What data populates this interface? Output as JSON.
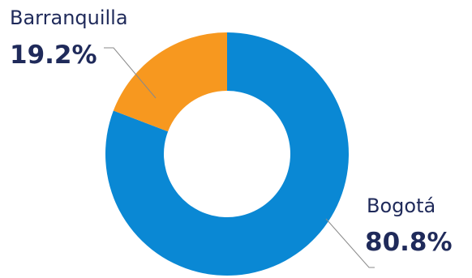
{
  "chart_data": {
    "type": "pie",
    "donut": true,
    "slices": [
      {
        "label": "Bogotá",
        "value": 80.8,
        "value_label": "80.8%",
        "color": "#0a88d4"
      },
      {
        "label": "Barranquilla",
        "value": 19.2,
        "value_label": "19.2%",
        "color": "#f7981f"
      }
    ],
    "legend": "none"
  }
}
